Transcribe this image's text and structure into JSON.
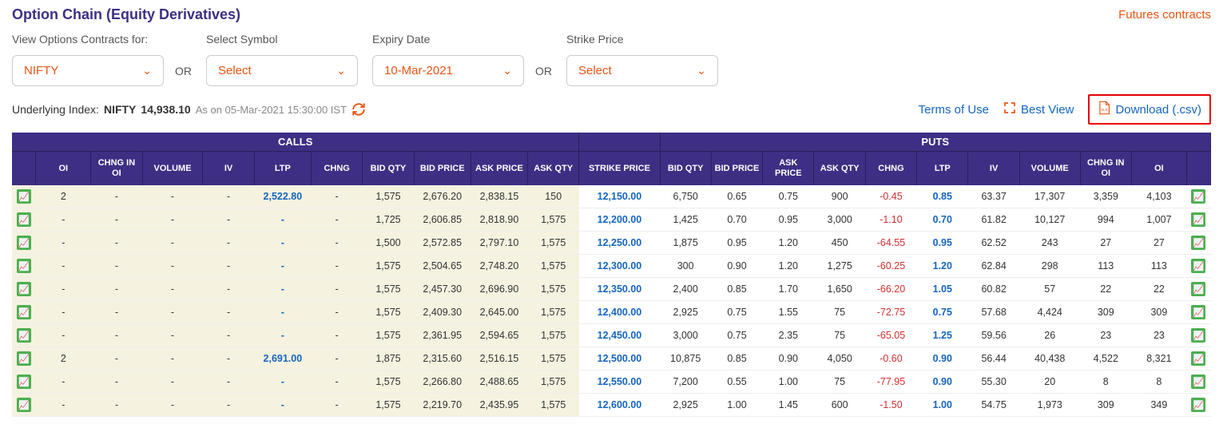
{
  "header": {
    "title": "Option Chain (Equity Derivatives)",
    "futures_link": "Futures contracts"
  },
  "filters": {
    "contracts_label": "View Options Contracts for:",
    "contracts_value": "NIFTY",
    "or": "OR",
    "symbol_label": "Select Symbol",
    "symbol_value": "Select",
    "expiry_label": "Expiry Date",
    "expiry_value": "10-Mar-2021",
    "strike_label": "Strike Price",
    "strike_value": "Select"
  },
  "underlying": {
    "prefix": "Underlying Index:",
    "index_name": "NIFTY",
    "index_value": "14,938.10",
    "timestamp": "As on 05-Mar-2021 15:30:00 IST"
  },
  "links": {
    "terms": "Terms of Use",
    "best_view": "Best View",
    "download": "Download (.csv)"
  },
  "table": {
    "group_calls": "CALLS",
    "group_puts": "PUTS",
    "cols": {
      "oi": "OI",
      "chng_oi": "CHNG IN OI",
      "volume": "VOLUME",
      "iv": "IV",
      "ltp": "LTP",
      "chng": "CHNG",
      "bid_qty": "BID QTY",
      "bid_price": "BID PRICE",
      "ask_price": "ASK PRICE",
      "ask_qty": "ASK QTY",
      "strike": "STRIKE PRICE"
    },
    "rows": [
      {
        "c_oi": "2",
        "c_chng_oi": "-",
        "c_vol": "-",
        "c_iv": "-",
        "c_ltp": "2,522.80",
        "c_chng": "-",
        "c_bq": "1,575",
        "c_bp": "2,676.20",
        "c_ap": "2,838.15",
        "c_aq": "150",
        "strike": "12,150.00",
        "p_bq": "6,750",
        "p_bp": "0.65",
        "p_ap": "0.75",
        "p_aq": "900",
        "p_chng": "-0.45",
        "p_ltp": "0.85",
        "p_iv": "63.37",
        "p_vol": "17,307",
        "p_chng_oi": "3,359",
        "p_oi": "4,103"
      },
      {
        "c_oi": "-",
        "c_chng_oi": "-",
        "c_vol": "-",
        "c_iv": "-",
        "c_ltp": "-",
        "c_chng": "-",
        "c_bq": "1,725",
        "c_bp": "2,606.85",
        "c_ap": "2,818.90",
        "c_aq": "1,575",
        "strike": "12,200.00",
        "p_bq": "1,425",
        "p_bp": "0.70",
        "p_ap": "0.95",
        "p_aq": "3,000",
        "p_chng": "-1.10",
        "p_ltp": "0.70",
        "p_iv": "61.82",
        "p_vol": "10,127",
        "p_chng_oi": "994",
        "p_oi": "1,007"
      },
      {
        "c_oi": "-",
        "c_chng_oi": "-",
        "c_vol": "-",
        "c_iv": "-",
        "c_ltp": "-",
        "c_chng": "-",
        "c_bq": "1,500",
        "c_bp": "2,572.85",
        "c_ap": "2,797.10",
        "c_aq": "1,575",
        "strike": "12,250.00",
        "p_bq": "1,875",
        "p_bp": "0.95",
        "p_ap": "1.20",
        "p_aq": "450",
        "p_chng": "-64.55",
        "p_ltp": "0.95",
        "p_iv": "62.52",
        "p_vol": "243",
        "p_chng_oi": "27",
        "p_oi": "27"
      },
      {
        "c_oi": "-",
        "c_chng_oi": "-",
        "c_vol": "-",
        "c_iv": "-",
        "c_ltp": "-",
        "c_chng": "-",
        "c_bq": "1,575",
        "c_bp": "2,504.65",
        "c_ap": "2,748.20",
        "c_aq": "1,575",
        "strike": "12,300.00",
        "p_bq": "300",
        "p_bp": "0.90",
        "p_ap": "1.20",
        "p_aq": "1,275",
        "p_chng": "-60.25",
        "p_ltp": "1.20",
        "p_iv": "62.84",
        "p_vol": "298",
        "p_chng_oi": "113",
        "p_oi": "113"
      },
      {
        "c_oi": "-",
        "c_chng_oi": "-",
        "c_vol": "-",
        "c_iv": "-",
        "c_ltp": "-",
        "c_chng": "-",
        "c_bq": "1,575",
        "c_bp": "2,457.30",
        "c_ap": "2,696.90",
        "c_aq": "1,575",
        "strike": "12,350.00",
        "p_bq": "2,400",
        "p_bp": "0.85",
        "p_ap": "1.70",
        "p_aq": "1,650",
        "p_chng": "-66.20",
        "p_ltp": "1.05",
        "p_iv": "60.82",
        "p_vol": "57",
        "p_chng_oi": "22",
        "p_oi": "22"
      },
      {
        "c_oi": "-",
        "c_chng_oi": "-",
        "c_vol": "-",
        "c_iv": "-",
        "c_ltp": "-",
        "c_chng": "-",
        "c_bq": "1,575",
        "c_bp": "2,409.30",
        "c_ap": "2,645.00",
        "c_aq": "1,575",
        "strike": "12,400.00",
        "p_bq": "2,925",
        "p_bp": "0.75",
        "p_ap": "1.55",
        "p_aq": "75",
        "p_chng": "-72.75",
        "p_ltp": "0.75",
        "p_iv": "57.68",
        "p_vol": "4,424",
        "p_chng_oi": "309",
        "p_oi": "309"
      },
      {
        "c_oi": "-",
        "c_chng_oi": "-",
        "c_vol": "-",
        "c_iv": "-",
        "c_ltp": "-",
        "c_chng": "-",
        "c_bq": "1,575",
        "c_bp": "2,361.95",
        "c_ap": "2,594.65",
        "c_aq": "1,575",
        "strike": "12,450.00",
        "p_bq": "3,000",
        "p_bp": "0.75",
        "p_ap": "2.35",
        "p_aq": "75",
        "p_chng": "-65.05",
        "p_ltp": "1.25",
        "p_iv": "59.56",
        "p_vol": "26",
        "p_chng_oi": "23",
        "p_oi": "23"
      },
      {
        "c_oi": "2",
        "c_chng_oi": "-",
        "c_vol": "-",
        "c_iv": "-",
        "c_ltp": "2,691.00",
        "c_chng": "-",
        "c_bq": "1,875",
        "c_bp": "2,315.60",
        "c_ap": "2,516.15",
        "c_aq": "1,575",
        "strike": "12,500.00",
        "p_bq": "10,875",
        "p_bp": "0.85",
        "p_ap": "0.90",
        "p_aq": "4,050",
        "p_chng": "-0.60",
        "p_ltp": "0.90",
        "p_iv": "56.44",
        "p_vol": "40,438",
        "p_chng_oi": "4,522",
        "p_oi": "8,321"
      },
      {
        "c_oi": "-",
        "c_chng_oi": "-",
        "c_vol": "-",
        "c_iv": "-",
        "c_ltp": "-",
        "c_chng": "-",
        "c_bq": "1,575",
        "c_bp": "2,266.80",
        "c_ap": "2,488.65",
        "c_aq": "1,575",
        "strike": "12,550.00",
        "p_bq": "7,200",
        "p_bp": "0.55",
        "p_ap": "1.00",
        "p_aq": "75",
        "p_chng": "-77.95",
        "p_ltp": "0.90",
        "p_iv": "55.30",
        "p_vol": "20",
        "p_chng_oi": "8",
        "p_oi": "8"
      },
      {
        "c_oi": "-",
        "c_chng_oi": "-",
        "c_vol": "-",
        "c_iv": "-",
        "c_ltp": "-",
        "c_chng": "-",
        "c_bq": "1,575",
        "c_bp": "2,219.70",
        "c_ap": "2,435.95",
        "c_aq": "1,575",
        "strike": "12,600.00",
        "p_bq": "2,925",
        "p_bp": "1.00",
        "p_ap": "1.45",
        "p_aq": "600",
        "p_chng": "-1.50",
        "p_ltp": "1.00",
        "p_iv": "54.75",
        "p_vol": "1,973",
        "p_chng_oi": "309",
        "p_oi": "349"
      }
    ]
  }
}
